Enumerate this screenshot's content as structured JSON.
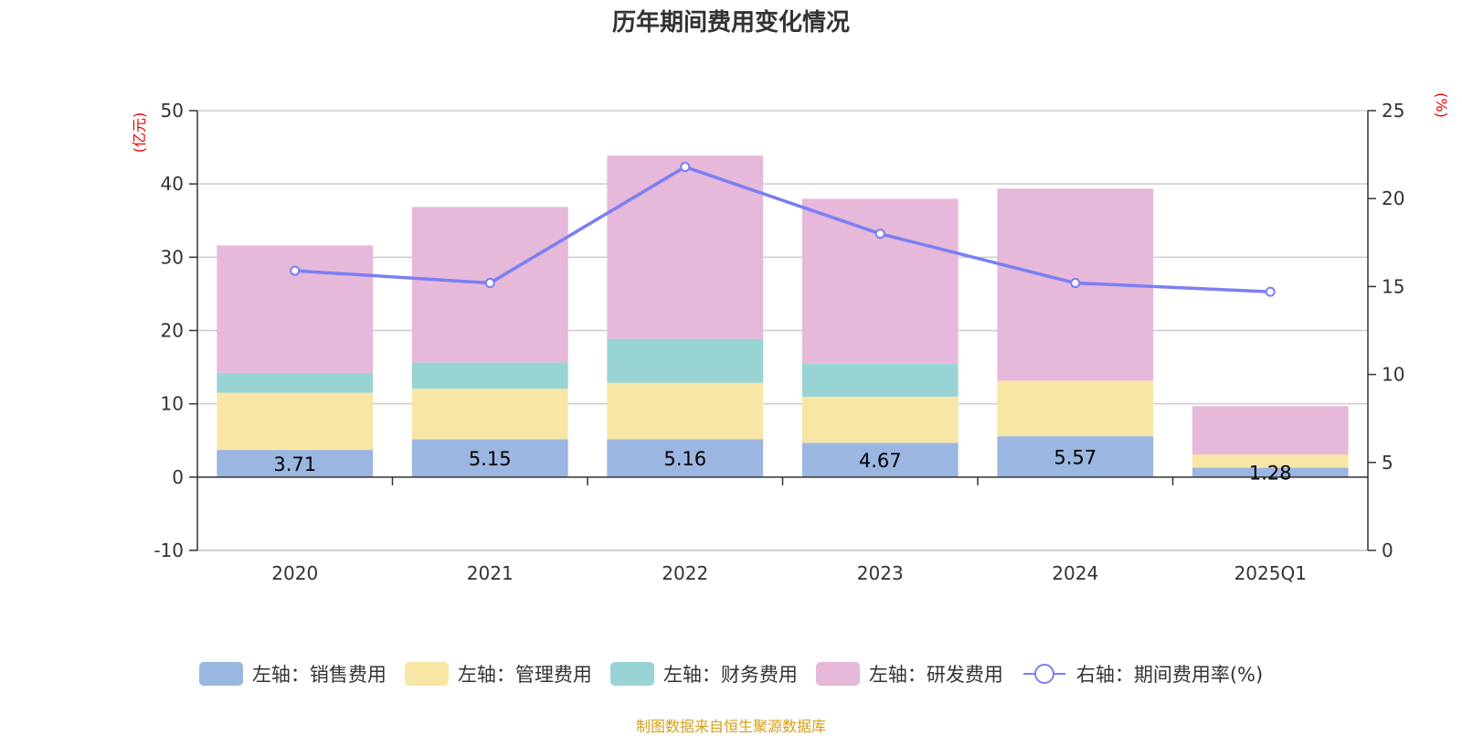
{
  "chart_data": {
    "type": "bar",
    "stacked": true,
    "title": "历年期间费用变化情况",
    "categories": [
      "2020",
      "2021",
      "2022",
      "2023",
      "2024",
      "2025Q1"
    ],
    "y_left": {
      "unit_label": "(亿元)",
      "ylim": [
        -10,
        50
      ],
      "ticks": [
        -10,
        0,
        10,
        20,
        30,
        40,
        50
      ]
    },
    "y_right": {
      "unit_label": "(%)",
      "ylim": [
        0,
        25
      ],
      "ticks": [
        0,
        5,
        10,
        15,
        20,
        25
      ]
    },
    "series": [
      {
        "name": "左轴：销售费用",
        "axis": "left",
        "type": "bar",
        "color": "#9bb6e0",
        "values": [
          3.71,
          5.15,
          5.16,
          4.67,
          5.57,
          1.28
        ],
        "labels": [
          "3.71",
          "5.15",
          "5.16",
          "4.67",
          "5.57",
          "1.28"
        ]
      },
      {
        "name": "左轴：管理费用",
        "axis": "left",
        "type": "bar",
        "color": "#f7e6a6",
        "values": [
          7.8,
          6.9,
          7.7,
          6.3,
          7.6,
          1.8
        ]
      },
      {
        "name": "左轴：财务费用",
        "axis": "left",
        "type": "bar",
        "color": "#98d4d4",
        "values": [
          2.7,
          3.6,
          6.0,
          4.5,
          0.0,
          0.0
        ]
      },
      {
        "name": "左轴：研发费用",
        "axis": "left",
        "type": "bar",
        "color": "#e6b8da",
        "values": [
          17.4,
          21.2,
          25.0,
          22.5,
          26.2,
          6.6
        ]
      },
      {
        "name": "右轴：期间费用率(%)",
        "axis": "right",
        "type": "line",
        "color": "#7b7ff2",
        "values": [
          15.9,
          15.2,
          21.8,
          18.0,
          15.2,
          14.7
        ]
      }
    ],
    "grid": true,
    "legend_position": "bottom"
  },
  "source_note": "制图数据来自恒生聚源数据库"
}
